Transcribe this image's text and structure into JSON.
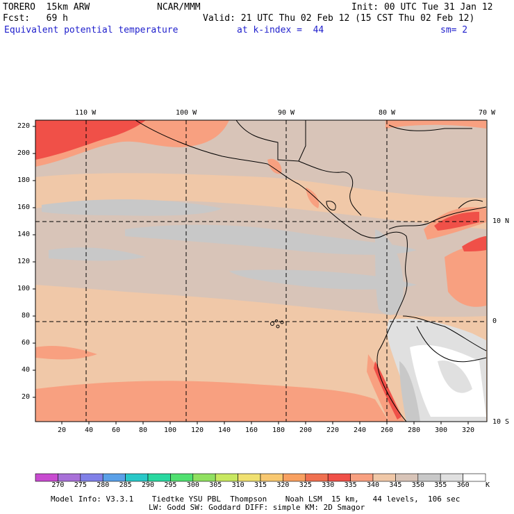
{
  "header": {
    "model": "TORERO  15km ARW",
    "org": "NCAR/MMM",
    "init": "Init: 00 UTC Tue 31 Jan 12",
    "fcst": "Fcst:   69 h",
    "valid": "Valid: 21 UTC Thu 02 Feb 12 (15 CST Thu 02 Feb 12)",
    "field": "Equivalent potential temperature",
    "level": "at k-index =  44",
    "smooth": "sm= 2"
  },
  "map": {
    "lon_labels": [
      "110 W",
      "100 W",
      "90 W",
      "80 W",
      "70 W"
    ],
    "lat_labels": [
      "10 N",
      "0",
      "10 S"
    ],
    "y_ticks": [
      "20",
      "40",
      "60",
      "80",
      "100",
      "120",
      "140",
      "160",
      "180",
      "200",
      "220"
    ],
    "x_ticks": [
      "20",
      "40",
      "60",
      "80",
      "100",
      "120",
      "140",
      "160",
      "180",
      "200",
      "220",
      "240",
      "260",
      "280",
      "300",
      "320"
    ]
  },
  "colorbar": {
    "labels": [
      "270",
      "275",
      "280",
      "285",
      "290",
      "295",
      "300",
      "305",
      "310",
      "315",
      "320",
      "325",
      "330",
      "335",
      "340",
      "345",
      "350",
      "355",
      "360"
    ],
    "unit": "K",
    "colors": [
      "#c84bd0",
      "#a870d8",
      "#8080e8",
      "#5aa0e8",
      "#28c8c8",
      "#28d8a0",
      "#50e070",
      "#90e060",
      "#c8e860",
      "#f0e070",
      "#f8c870",
      "#f8a060",
      "#f07050",
      "#f05048",
      "#f8a080",
      "#f0c8a8",
      "#d8c4b8",
      "#c8c8c8",
      "#e0e0e0",
      "#ffffff"
    ]
  },
  "footer": {
    "line1": "Model Info: V3.3.1    Tiedtke YSU PBL  Thompson    Noah LSM  15 km,   44 levels,  106 sec",
    "line2": "LW: Godd SW: Goddard DIFF: simple KM: 2D Smagor"
  }
}
